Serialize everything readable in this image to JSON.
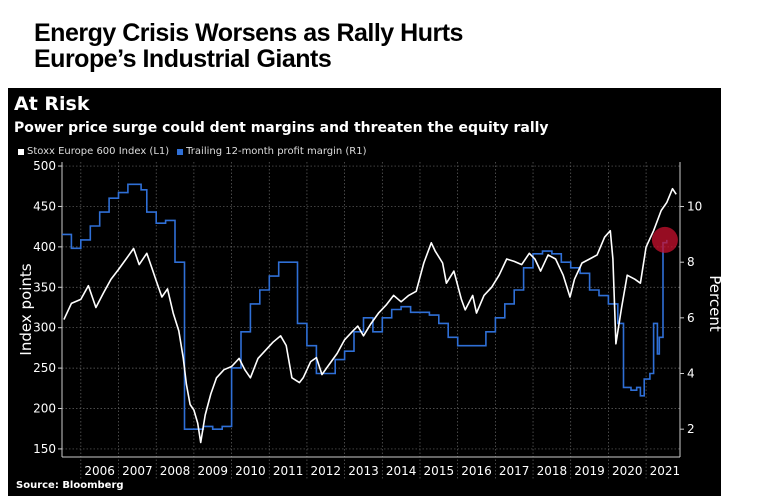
{
  "headline": [
    "Energy Crisis Worsens as Rally Hurts",
    "Europe’s Industrial Giants"
  ],
  "source": "Source: Bloomberg",
  "colors": {
    "index_line": "#ffffff",
    "margin_line": "#2f6fd6",
    "highlight": "#c8102e",
    "background": "#000000"
  },
  "chart_data": {
    "type": "line",
    "title": "At Risk",
    "subtitle": "Power price surge could dent margins and threaten the equity rally",
    "ylabel_left": "Index points",
    "ylabel_right": "Percent",
    "ylim_left": [
      140,
      505
    ],
    "ylim_right": [
      1.0,
      11.6
    ],
    "yticks_left": [
      "150",
      "200",
      "250",
      "300",
      "350",
      "400",
      "450",
      "500"
    ],
    "yticks_right": [
      "2",
      "4",
      "6",
      "8",
      "10"
    ],
    "xticks": [
      "2006",
      "2007",
      "2008",
      "2009",
      "2010",
      "2011",
      "2012",
      "2013",
      "2014",
      "2015",
      "2016",
      "2017",
      "2018",
      "2019",
      "2020",
      "2021"
    ],
    "xlim": [
      2005.5,
      2021.9
    ],
    "grid": true,
    "legend_position": "top-left",
    "series": [
      {
        "name": "Stoxx Europe 600 Index (L1)",
        "axis": "left",
        "points": [
          [
            2005.55,
            310
          ],
          [
            2005.75,
            330
          ],
          [
            2006.0,
            335
          ],
          [
            2006.2,
            352
          ],
          [
            2006.4,
            325
          ],
          [
            2006.6,
            343
          ],
          [
            2006.8,
            360
          ],
          [
            2007.0,
            372
          ],
          [
            2007.2,
            385
          ],
          [
            2007.4,
            398
          ],
          [
            2007.55,
            378
          ],
          [
            2007.75,
            392
          ],
          [
            2007.9,
            372
          ],
          [
            2008.0,
            358
          ],
          [
            2008.15,
            338
          ],
          [
            2008.3,
            348
          ],
          [
            2008.45,
            318
          ],
          [
            2008.6,
            296
          ],
          [
            2008.72,
            262
          ],
          [
            2008.8,
            230
          ],
          [
            2008.9,
            205
          ],
          [
            2009.0,
            198
          ],
          [
            2009.1,
            182
          ],
          [
            2009.18,
            158
          ],
          [
            2009.3,
            192
          ],
          [
            2009.45,
            218
          ],
          [
            2009.6,
            238
          ],
          [
            2009.8,
            248
          ],
          [
            2010.0,
            252
          ],
          [
            2010.2,
            262
          ],
          [
            2010.35,
            248
          ],
          [
            2010.5,
            238
          ],
          [
            2010.7,
            262
          ],
          [
            2010.9,
            272
          ],
          [
            2011.1,
            282
          ],
          [
            2011.3,
            290
          ],
          [
            2011.45,
            278
          ],
          [
            2011.6,
            238
          ],
          [
            2011.8,
            232
          ],
          [
            2011.9,
            238
          ],
          [
            2012.1,
            258
          ],
          [
            2012.25,
            263
          ],
          [
            2012.4,
            242
          ],
          [
            2012.55,
            252
          ],
          [
            2012.8,
            268
          ],
          [
            2013.0,
            285
          ],
          [
            2013.2,
            295
          ],
          [
            2013.35,
            302
          ],
          [
            2013.5,
            290
          ],
          [
            2013.7,
            305
          ],
          [
            2013.9,
            318
          ],
          [
            2014.1,
            328
          ],
          [
            2014.3,
            340
          ],
          [
            2014.5,
            332
          ],
          [
            2014.7,
            340
          ],
          [
            2014.9,
            345
          ],
          [
            2015.1,
            380
          ],
          [
            2015.3,
            405
          ],
          [
            2015.4,
            395
          ],
          [
            2015.6,
            380
          ],
          [
            2015.7,
            355
          ],
          [
            2015.9,
            370
          ],
          [
            2016.1,
            335
          ],
          [
            2016.2,
            322
          ],
          [
            2016.4,
            340
          ],
          [
            2016.5,
            318
          ],
          [
            2016.7,
            340
          ],
          [
            2016.9,
            350
          ],
          [
            2017.1,
            365
          ],
          [
            2017.3,
            385
          ],
          [
            2017.5,
            382
          ],
          [
            2017.7,
            378
          ],
          [
            2017.9,
            392
          ],
          [
            2018.05,
            385
          ],
          [
            2018.2,
            370
          ],
          [
            2018.4,
            390
          ],
          [
            2018.6,
            385
          ],
          [
            2018.8,
            365
          ],
          [
            2018.98,
            338
          ],
          [
            2019.1,
            360
          ],
          [
            2019.3,
            380
          ],
          [
            2019.5,
            385
          ],
          [
            2019.7,
            390
          ],
          [
            2019.9,
            412
          ],
          [
            2020.05,
            420
          ],
          [
            2020.12,
            385
          ],
          [
            2020.2,
            280
          ],
          [
            2020.35,
            325
          ],
          [
            2020.5,
            365
          ],
          [
            2020.7,
            360
          ],
          [
            2020.85,
            355
          ],
          [
            2021.0,
            400
          ],
          [
            2021.2,
            420
          ],
          [
            2021.4,
            445
          ],
          [
            2021.55,
            455
          ],
          [
            2021.7,
            472
          ],
          [
            2021.8,
            465
          ]
        ]
      },
      {
        "name": "Trailing 12-month profit margin (R1)",
        "axis": "right",
        "points": [
          [
            2005.5,
            9.0
          ],
          [
            2005.75,
            8.5
          ],
          [
            2006.0,
            8.8
          ],
          [
            2006.25,
            9.3
          ],
          [
            2006.5,
            9.8
          ],
          [
            2006.75,
            10.3
          ],
          [
            2007.0,
            10.5
          ],
          [
            2007.25,
            10.8
          ],
          [
            2007.6,
            10.6
          ],
          [
            2007.75,
            9.8
          ],
          [
            2008.0,
            9.4
          ],
          [
            2008.25,
            9.5
          ],
          [
            2008.5,
            8.0
          ],
          [
            2008.75,
            2.0
          ],
          [
            2009.0,
            2.0
          ],
          [
            2009.25,
            2.1
          ],
          [
            2009.5,
            2.0
          ],
          [
            2009.75,
            2.1
          ],
          [
            2010.0,
            4.2
          ],
          [
            2010.25,
            5.5
          ],
          [
            2010.5,
            6.5
          ],
          [
            2010.75,
            7.0
          ],
          [
            2011.0,
            7.5
          ],
          [
            2011.25,
            8.0
          ],
          [
            2011.5,
            8.0
          ],
          [
            2011.75,
            5.8
          ],
          [
            2012.0,
            5.0
          ],
          [
            2012.25,
            4.0
          ],
          [
            2012.5,
            4.0
          ],
          [
            2012.75,
            4.5
          ],
          [
            2013.0,
            4.8
          ],
          [
            2013.25,
            5.5
          ],
          [
            2013.5,
            6.0
          ],
          [
            2013.75,
            5.5
          ],
          [
            2014.0,
            6.0
          ],
          [
            2014.25,
            6.3
          ],
          [
            2014.5,
            6.4
          ],
          [
            2014.75,
            6.2
          ],
          [
            2015.0,
            6.2
          ],
          [
            2015.25,
            6.1
          ],
          [
            2015.5,
            5.8
          ],
          [
            2015.75,
            5.3
          ],
          [
            2016.0,
            5.0
          ],
          [
            2016.25,
            5.0
          ],
          [
            2016.5,
            5.0
          ],
          [
            2016.75,
            5.5
          ],
          [
            2017.0,
            6.0
          ],
          [
            2017.25,
            6.5
          ],
          [
            2017.5,
            7.0
          ],
          [
            2017.75,
            7.8
          ],
          [
            2018.0,
            8.3
          ],
          [
            2018.25,
            8.4
          ],
          [
            2018.5,
            8.3
          ],
          [
            2018.75,
            8.0
          ],
          [
            2019.0,
            7.8
          ],
          [
            2019.25,
            7.6
          ],
          [
            2019.5,
            7.0
          ],
          [
            2019.75,
            6.8
          ],
          [
            2020.0,
            6.5
          ],
          [
            2020.25,
            5.8
          ],
          [
            2020.4,
            3.5
          ],
          [
            2020.6,
            3.4
          ],
          [
            2020.75,
            3.5
          ],
          [
            2020.85,
            3.2
          ],
          [
            2020.95,
            3.8
          ],
          [
            2021.1,
            4.0
          ],
          [
            2021.2,
            5.8
          ],
          [
            2021.3,
            4.7
          ],
          [
            2021.35,
            5.3
          ],
          [
            2021.45,
            8.7
          ],
          [
            2021.55,
            8.8
          ]
        ]
      }
    ],
    "highlight_points": [
      {
        "series": "Trailing 12-month profit margin (R1)",
        "x": 2021.5,
        "y": 8.8
      }
    ]
  }
}
